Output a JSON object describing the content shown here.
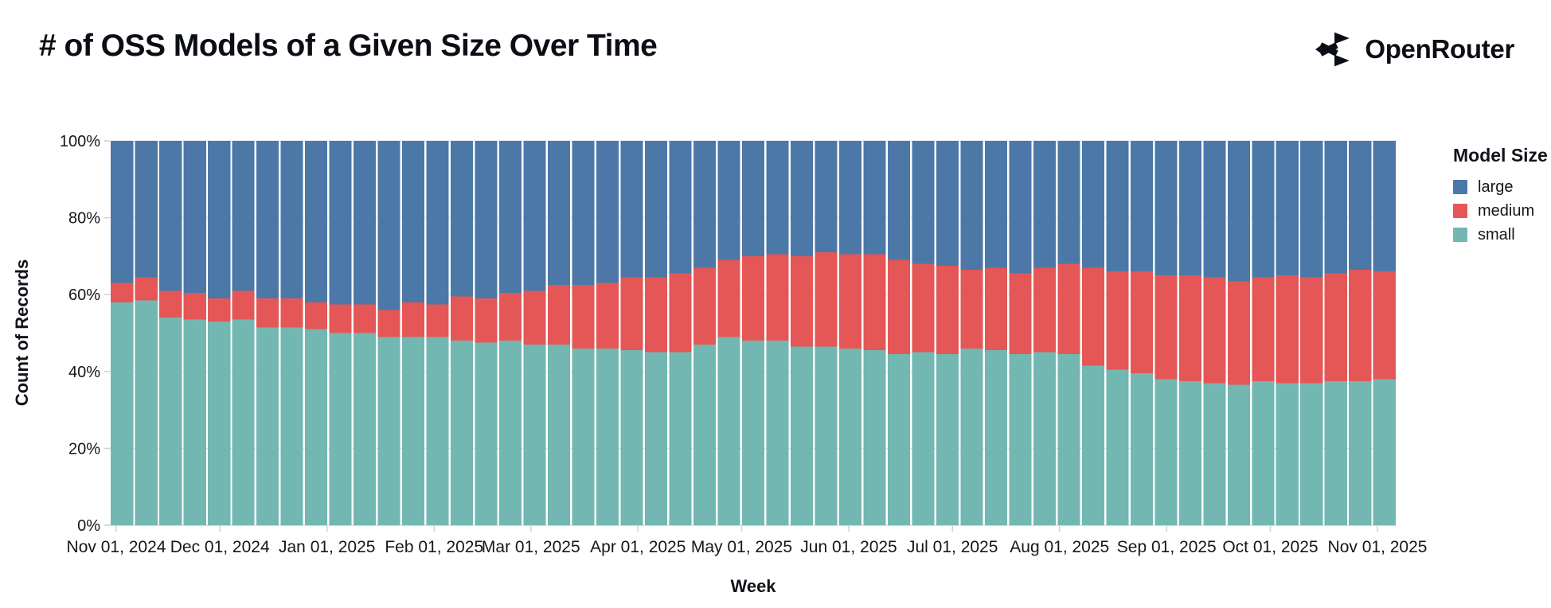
{
  "header": {
    "title": "# of OSS Models of a Given Size Over Time",
    "brand": "OpenRouter"
  },
  "legend": {
    "title": "Model Size",
    "items": [
      {
        "label": "large",
        "color": "#4c78a8"
      },
      {
        "label": "medium",
        "color": "#e45756"
      },
      {
        "label": "small",
        "color": "#72b7b2"
      }
    ]
  },
  "chart_data": {
    "type": "bar",
    "stacked": "normalized-100%",
    "title": "# of OSS Models of a Given Size Over Time",
    "xlabel": "Week",
    "ylabel": "Count of Records",
    "ylim": [
      0,
      100
    ],
    "grid": true,
    "legend_position": "right",
    "y_tick_labels": [
      "0%",
      "20%",
      "40%",
      "60%",
      "80%",
      "100%"
    ],
    "x_tick_labels": [
      {
        "label": "Nov 01, 2024",
        "day": 0
      },
      {
        "label": "Dec 01, 2024",
        "day": 30
      },
      {
        "label": "Jan 01, 2025",
        "day": 61
      },
      {
        "label": "Feb 01, 2025",
        "day": 92
      },
      {
        "label": "Mar 01, 2025",
        "day": 120
      },
      {
        "label": "Apr 01, 2025",
        "day": 151
      },
      {
        "label": "May 01, 2025",
        "day": 181
      },
      {
        "label": "Jun 01, 2025",
        "day": 212
      },
      {
        "label": "Jul 01, 2025",
        "day": 242
      },
      {
        "label": "Aug 01, 2025",
        "day": 273
      },
      {
        "label": "Sep 01, 2025",
        "day": 304
      },
      {
        "label": "Oct 01, 2025",
        "day": 334
      },
      {
        "label": "Nov 01, 2025",
        "day": 365
      }
    ],
    "categories": [
      "2024-11-01",
      "2024-11-08",
      "2024-11-15",
      "2024-11-22",
      "2024-11-29",
      "2024-12-06",
      "2024-12-13",
      "2024-12-20",
      "2024-12-27",
      "2025-01-03",
      "2025-01-10",
      "2025-01-17",
      "2025-01-24",
      "2025-01-31",
      "2025-02-07",
      "2025-02-14",
      "2025-02-21",
      "2025-02-28",
      "2025-03-07",
      "2025-03-14",
      "2025-03-21",
      "2025-03-28",
      "2025-04-04",
      "2025-04-11",
      "2025-04-18",
      "2025-04-25",
      "2025-05-02",
      "2025-05-09",
      "2025-05-16",
      "2025-05-23",
      "2025-05-30",
      "2025-06-06",
      "2025-06-13",
      "2025-06-20",
      "2025-06-27",
      "2025-07-04",
      "2025-07-11",
      "2025-07-18",
      "2025-07-25",
      "2025-08-01",
      "2025-08-08",
      "2025-08-15",
      "2025-08-22",
      "2025-08-29",
      "2025-09-05",
      "2025-09-12",
      "2025-09-19",
      "2025-09-26",
      "2025-10-03",
      "2025-10-10",
      "2025-10-17",
      "2025-10-24",
      "2025-10-31"
    ],
    "series": [
      {
        "name": "small",
        "color": "#72b7b2",
        "values": [
          58,
          58.5,
          54,
          53.5,
          53,
          53.5,
          51.5,
          51.5,
          51,
          50,
          50,
          49,
          49,
          49,
          48,
          47.5,
          48,
          47,
          47,
          46,
          46,
          45.5,
          45,
          45,
          47,
          49,
          48,
          48,
          46.5,
          46.5,
          46,
          45.5,
          44.5,
          45,
          44.5,
          46,
          45.5,
          44.5,
          45,
          44.5,
          41.5,
          40.5,
          39.5,
          38,
          37.5,
          37,
          36.5,
          37.5,
          37,
          37,
          37.5,
          37.5,
          38
        ]
      },
      {
        "name": "medium",
        "color": "#e45756",
        "values": [
          5,
          6,
          7,
          7,
          6,
          7.5,
          7.5,
          7.5,
          7,
          7.5,
          7.5,
          7,
          9,
          8.5,
          11.5,
          11.5,
          12.5,
          14,
          15.5,
          16.5,
          17,
          19,
          19.5,
          20.5,
          20,
          20,
          22,
          22.5,
          23.5,
          24.5,
          24.5,
          25,
          24.5,
          23,
          23,
          20.5,
          21.5,
          21,
          22,
          23.5,
          25.5,
          25.5,
          26.5,
          27,
          27.5,
          27.5,
          27,
          27,
          28,
          27.5,
          28,
          29,
          28
        ]
      },
      {
        "name": "large",
        "color": "#4c78a8",
        "values": [
          37,
          35.5,
          39,
          39.5,
          41,
          39,
          41,
          41,
          42,
          42.5,
          42.5,
          44,
          42,
          42.5,
          40.5,
          41,
          39.5,
          39,
          37.5,
          37.5,
          37,
          35.5,
          35.5,
          34.5,
          33,
          31,
          30,
          29.5,
          30,
          29,
          29.5,
          29.5,
          31,
          32,
          32.5,
          33.5,
          33,
          34.5,
          33,
          32,
          33,
          34,
          34,
          35,
          35,
          35.5,
          36.5,
          35.5,
          35,
          35.5,
          34.5,
          33.5,
          34
        ]
      }
    ]
  },
  "style": {
    "grid_color": "#e2e2ea",
    "tick_color": "#cfcfd6",
    "domain_color": "#dddddd",
    "text_color": "#14171c"
  }
}
